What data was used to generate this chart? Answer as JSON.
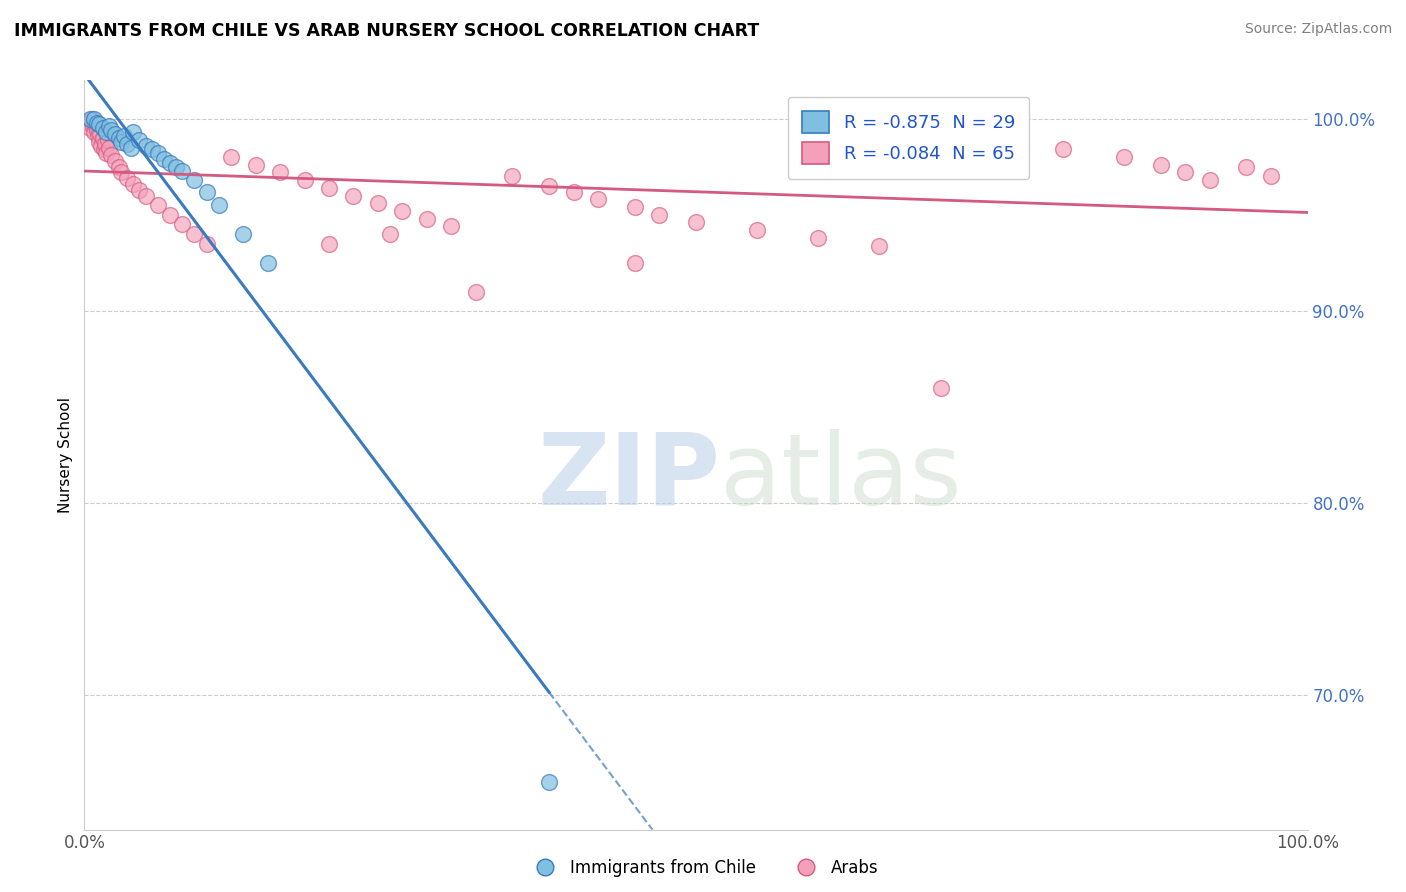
{
  "title": "IMMIGRANTS FROM CHILE VS ARAB NURSERY SCHOOL CORRELATION CHART",
  "source": "Source: ZipAtlas.com",
  "ylabel": "Nursery School",
  "legend_label1": "Immigrants from Chile",
  "legend_label2": "Arabs",
  "R1": -0.875,
  "N1": 29,
  "R2": -0.084,
  "N2": 65,
  "color_chile": "#7fbfdf",
  "color_arab": "#f4a0bb",
  "color_chile_line": "#3a7abf",
  "color_arab_line": "#d45a80",
  "watermark_zip": "ZIP",
  "watermark_atlas": "atlas",
  "xlim": [
    0,
    100
  ],
  "ylim": [
    63,
    102
  ],
  "yticks": [
    70,
    80,
    90,
    100
  ],
  "ytick_labels": [
    "70.0%",
    "80.0%",
    "90.0%",
    "100.0%"
  ],
  "chile_x": [
    0.5,
    0.8,
    1.0,
    1.2,
    1.5,
    1.8,
    2.0,
    2.2,
    2.5,
    2.8,
    3.0,
    3.2,
    3.5,
    3.8,
    4.0,
    4.5,
    5.0,
    5.5,
    6.0,
    6.5,
    7.0,
    7.5,
    8.0,
    9.0,
    10.0,
    11.0,
    13.0,
    15.0,
    38.0
  ],
  "chile_y": [
    100.0,
    100.0,
    99.8,
    99.7,
    99.5,
    99.3,
    99.6,
    99.4,
    99.2,
    99.0,
    98.8,
    99.1,
    98.7,
    98.5,
    99.3,
    98.9,
    98.6,
    98.4,
    98.2,
    97.9,
    97.7,
    97.5,
    97.3,
    96.8,
    96.2,
    95.5,
    94.0,
    92.5,
    65.5
  ],
  "arab_x": [
    0.3,
    0.5,
    0.6,
    0.7,
    0.8,
    0.9,
    1.0,
    1.1,
    1.2,
    1.3,
    1.4,
    1.5,
    1.6,
    1.7,
    1.8,
    1.9,
    2.0,
    2.2,
    2.5,
    2.8,
    3.0,
    3.5,
    4.0,
    4.5,
    5.0,
    6.0,
    7.0,
    8.0,
    9.0,
    10.0,
    12.0,
    14.0,
    16.0,
    18.0,
    20.0,
    22.0,
    24.0,
    26.0,
    28.0,
    30.0,
    35.0,
    38.0,
    40.0,
    42.0,
    45.0,
    47.0,
    50.0,
    55.0,
    60.0,
    65.0,
    68.0,
    70.0,
    75.0,
    80.0,
    85.0,
    88.0,
    90.0,
    92.0,
    95.0,
    97.0,
    20.0,
    25.0,
    32.0,
    45.0,
    70.0
  ],
  "arab_y": [
    99.8,
    99.5,
    100.0,
    99.6,
    99.3,
    99.7,
    99.4,
    99.1,
    98.8,
    99.2,
    98.6,
    99.0,
    98.4,
    98.7,
    98.2,
    98.9,
    98.5,
    98.1,
    97.8,
    97.5,
    97.2,
    96.9,
    96.6,
    96.3,
    96.0,
    95.5,
    95.0,
    94.5,
    94.0,
    93.5,
    98.0,
    97.6,
    97.2,
    96.8,
    96.4,
    96.0,
    95.6,
    95.2,
    94.8,
    94.4,
    97.0,
    96.5,
    96.2,
    95.8,
    95.4,
    95.0,
    94.6,
    94.2,
    93.8,
    93.4,
    99.0,
    99.2,
    98.8,
    98.4,
    98.0,
    97.6,
    97.2,
    96.8,
    97.5,
    97.0,
    93.5,
    94.0,
    91.0,
    92.5,
    86.0
  ]
}
